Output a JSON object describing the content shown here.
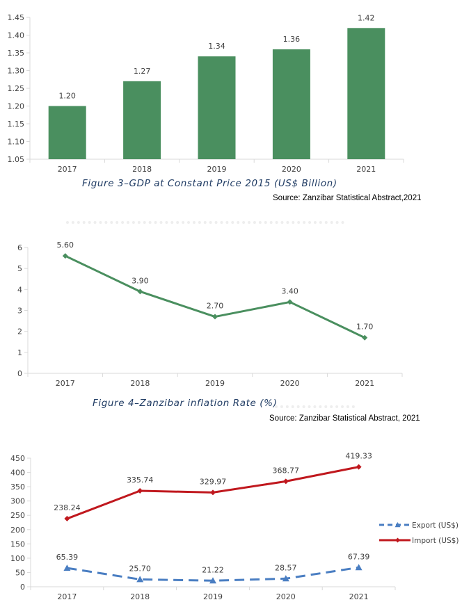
{
  "chart_data": [
    {
      "type": "bar",
      "categories": [
        "2017",
        "2018",
        "2019",
        "2020",
        "2021"
      ],
      "values": [
        1.2,
        1.27,
        1.34,
        1.36,
        1.42
      ],
      "data_labels": [
        "1.20",
        "1.27",
        "1.34",
        "1.36",
        "1.42"
      ],
      "yticks": [
        "1.05",
        "1.10",
        "1.15",
        "1.20",
        "1.25",
        "1.30",
        "1.35",
        "1.40",
        "1.45"
      ],
      "ylim": [
        1.05,
        1.45
      ],
      "grid": false,
      "color": "#4a8f5f",
      "caption": "Figure 3–GDP at Constant Price 2015 (US$ Billion)",
      "source": "Source: Zanzibar Statistical Abstract,2021"
    },
    {
      "type": "line",
      "categories": [
        "2017",
        "2018",
        "2019",
        "2020",
        "2021"
      ],
      "values": [
        5.6,
        3.9,
        2.7,
        3.4,
        1.7
      ],
      "data_labels": [
        "5.60",
        "3.90",
        "2.70",
        "3.40",
        "1.70"
      ],
      "yticks": [
        "0",
        "1",
        "2",
        "3",
        "4",
        "5",
        "6"
      ],
      "ylim": [
        0,
        6
      ],
      "grid": false,
      "color": "#4a8f5f",
      "marker": "diamond",
      "caption": "Figure 4–Zanzibar inflation Rate (%)",
      "source": "Source: Zanzibar Statistical Abstract, 2021"
    },
    {
      "type": "line",
      "categories": [
        "2017",
        "2018",
        "2019",
        "2020",
        "2021"
      ],
      "yticks": [
        "0",
        "50",
        "100",
        "150",
        "200",
        "250",
        "300",
        "350",
        "400",
        "450"
      ],
      "ylim": [
        0,
        450
      ],
      "grid": false,
      "legend_position": "right",
      "series": [
        {
          "name": "Export (US$)",
          "values": [
            65.39,
            25.7,
            21.22,
            28.57,
            67.39
          ],
          "data_labels": [
            "65.39",
            "25.70",
            "21.22",
            "28.57",
            "67.39"
          ],
          "color": "#4a7ec2",
          "style": "dashed",
          "marker": "triangle"
        },
        {
          "name": "Import (US$)",
          "values": [
            238.24,
            335.74,
            329.97,
            368.77,
            419.33
          ],
          "data_labels": [
            "238.24",
            "335.74",
            "329.97",
            "368.77",
            "419.33"
          ],
          "color": "#c0181e",
          "style": "solid",
          "marker": "diamond"
        }
      ]
    }
  ]
}
